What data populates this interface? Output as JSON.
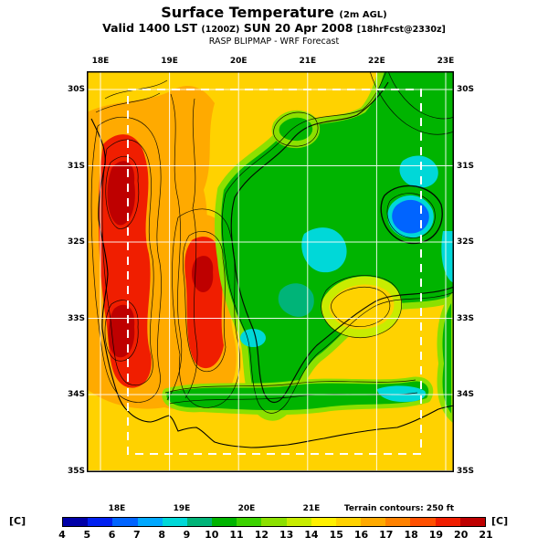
{
  "header": {
    "title": "Surface Temperature",
    "title_suffix": "(2m AGL)",
    "valid_prefix": "Valid 1400 LST",
    "valid_zulu": "(1200Z)",
    "valid_date": "SUN 20 Apr 2008",
    "valid_fcst": "[18hrFcst@2330z]",
    "model": "RASP BLIPMAP - WRF Forecast"
  },
  "map": {
    "top_labels": [
      "18E",
      "19E",
      "20E",
      "21E",
      "22E",
      "23E"
    ],
    "bottom_labels": [
      "18E",
      "19E",
      "20E",
      "21E"
    ],
    "left_labels": [
      "30S",
      "31S",
      "32S",
      "33S",
      "34S",
      "35S"
    ],
    "right_labels": [
      "30S",
      "31S",
      "32S",
      "33S",
      "34S",
      "35S"
    ],
    "terrain_note": "Terrain contours: 250 ft"
  },
  "colorbar": {
    "unit": "[C]",
    "ticks": [
      "4",
      "5",
      "6",
      "7",
      "8",
      "9",
      "10",
      "11",
      "12",
      "13",
      "14",
      "15",
      "16",
      "17",
      "18",
      "19",
      "20",
      "21"
    ],
    "colors": [
      "#0000A8",
      "#0020F0",
      "#0064FF",
      "#00A8FF",
      "#00D8D8",
      "#00B478",
      "#00B400",
      "#3CD200",
      "#8CE000",
      "#C8EC00",
      "#FFF000",
      "#FFD200",
      "#FFAA00",
      "#FF8200",
      "#FF5000",
      "#F01E00",
      "#BE0000"
    ]
  },
  "chart_data": {
    "type": "heatmap",
    "title": "Surface Temperature (2m AGL)",
    "valid": "Valid 1400 LST (1200Z) SUN 20 Apr 2008 [18hrFcst@2330z]",
    "model": "RASP BLIPMAP - WRF Forecast",
    "x_ticks": [
      "18E",
      "19E",
      "20E",
      "21E",
      "22E",
      "23E"
    ],
    "y_ticks": [
      "30S",
      "31S",
      "32S",
      "33S",
      "34S",
      "35S"
    ],
    "colorbar_units": "C",
    "colorbar_min": 4,
    "colorbar_max": 21,
    "note": "Terrain contours: 250 ft"
  }
}
